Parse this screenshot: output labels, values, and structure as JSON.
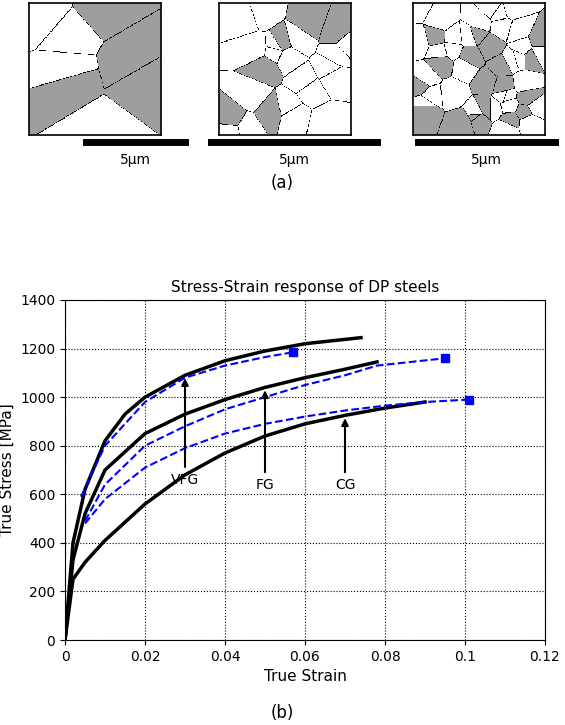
{
  "figure": {
    "panel_labels": [
      "(a)",
      "(b)"
    ],
    "scale_bars": [
      "5μm",
      "5μm",
      "5μm"
    ]
  },
  "chart_data": {
    "type": "line",
    "title": "Stress-Strain response of DP steels",
    "x_label": "True Strain",
    "y_label": "True Stress [MPa]",
    "xlim": [
      0,
      0.12
    ],
    "xticks": [
      0,
      0.02,
      0.04,
      0.06,
      0.08,
      0.1,
      0.12
    ],
    "ylim": [
      0,
      1400
    ],
    "yticks": [
      0,
      200,
      400,
      600,
      800,
      1000,
      1200,
      1400
    ],
    "grid": true,
    "series": [
      {
        "name": "VFG",
        "color": "#000000",
        "line_style": "solid",
        "x": [
          0,
          0.002,
          0.005,
          0.01,
          0.015,
          0.02,
          0.03,
          0.04,
          0.05,
          0.06,
          0.074
        ],
        "values": [
          0,
          400,
          620,
          820,
          930,
          1000,
          1090,
          1150,
          1190,
          1220,
          1245
        ]
      },
      {
        "name": "FG",
        "color": "#000000",
        "line_style": "solid",
        "x": [
          0,
          0.002,
          0.005,
          0.01,
          0.02,
          0.03,
          0.04,
          0.05,
          0.06,
          0.07,
          0.078
        ],
        "values": [
          0,
          330,
          520,
          700,
          850,
          930,
          990,
          1040,
          1080,
          1115,
          1145
        ]
      },
      {
        "name": "CG",
        "color": "#000000",
        "line_style": "solid",
        "x": [
          0,
          0.002,
          0.005,
          0.01,
          0.02,
          0.03,
          0.04,
          0.05,
          0.06,
          0.07,
          0.08,
          0.09
        ],
        "values": [
          0,
          250,
          320,
          410,
          560,
          680,
          770,
          840,
          890,
          925,
          955,
          980
        ]
      },
      {
        "color": "#0000ff",
        "line_style": "dashed",
        "marker": "square",
        "x": [
          0.004,
          0.01,
          0.02,
          0.03,
          0.04,
          0.05,
          0.057
        ],
        "values": [
          590,
          800,
          980,
          1080,
          1130,
          1165,
          1185
        ]
      },
      {
        "color": "#0000ff",
        "line_style": "dashed",
        "marker": "square",
        "x": [
          0.005,
          0.01,
          0.02,
          0.03,
          0.04,
          0.05,
          0.06,
          0.07,
          0.078,
          0.095
        ],
        "values": [
          490,
          640,
          800,
          880,
          950,
          1000,
          1050,
          1090,
          1130,
          1160
        ]
      },
      {
        "color": "#0000ff",
        "line_style": "dashed",
        "marker": "square",
        "x": [
          0.005,
          0.01,
          0.02,
          0.03,
          0.04,
          0.05,
          0.06,
          0.07,
          0.08,
          0.09,
          0.101
        ],
        "values": [
          480,
          580,
          710,
          790,
          850,
          890,
          920,
          945,
          965,
          980,
          990
        ]
      }
    ]
  }
}
